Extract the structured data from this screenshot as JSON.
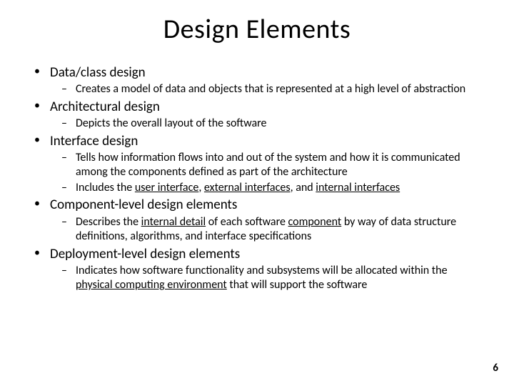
{
  "title": "Design Elements",
  "page_number": "6",
  "items": [
    {
      "label": "Data/class design",
      "sub": [
        {
          "segments": [
            {
              "t": "Creates a model of data and objects that is represented at a high level of abstraction"
            }
          ]
        }
      ]
    },
    {
      "label": "Architectural design",
      "sub": [
        {
          "segments": [
            {
              "t": "Depicts the overall layout of the software"
            }
          ]
        }
      ]
    },
    {
      "label": "Interface design",
      "sub": [
        {
          "segments": [
            {
              "t": "Tells how information flows into and out of the system and how it is communicated among the components defined as part of the architecture"
            }
          ]
        },
        {
          "segments": [
            {
              "t": "Includes the "
            },
            {
              "t": "user interface",
              "u": true
            },
            {
              "t": ", "
            },
            {
              "t": "external interfaces",
              "u": true
            },
            {
              "t": ", and "
            },
            {
              "t": "internal interfaces",
              "u": true
            }
          ]
        }
      ]
    },
    {
      "label": "Component-level design elements",
      "sub": [
        {
          "segments": [
            {
              "t": "Describes the "
            },
            {
              "t": "internal detail",
              "u": true
            },
            {
              "t": " of each software "
            },
            {
              "t": "component",
              "u": true
            },
            {
              "t": " by way of data structure definitions, algorithms, and interface specifications"
            }
          ]
        }
      ]
    },
    {
      "label": "Deployment-level design elements",
      "sub": [
        {
          "segments": [
            {
              "t": "Indicates how software functionality  and subsystems will be allocated within the "
            },
            {
              "t": "physical computing environment",
              "u": true
            },
            {
              "t": " that will support the software"
            }
          ]
        }
      ]
    }
  ],
  "colors": {
    "background": "#ffffff",
    "text": "#000000"
  },
  "typography": {
    "title_fontsize": 38,
    "l1_fontsize": 19,
    "l2_fontsize": 16,
    "font_family": "Calibri"
  }
}
